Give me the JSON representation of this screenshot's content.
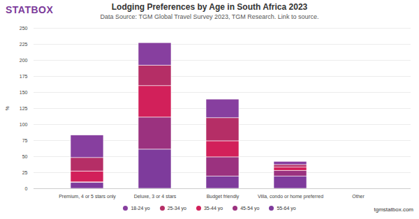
{
  "chart_data": {
    "type": "bar",
    "logo": "STATBOX",
    "title": "Lodging Preferences by Age in South Africa 2023",
    "subtitle": "Data Source: TGM Global Travel Survey 2023, TGM Research. Link to source.",
    "credit": "tgmstatbox.com",
    "y_label": "%",
    "categories": [
      "Premium, 4 or 5 stars only",
      "Deluxe, 3 or 4 stars",
      "Budget friendly",
      "Villa, condo or home preferred",
      "Other"
    ],
    "series": [
      {
        "name": "18-24 yo",
        "color": "#873f9f",
        "values": [
          35,
          35,
          29,
          5,
          0
        ]
      },
      {
        "name": "25-34 yo",
        "color": "#b52e66",
        "values": [
          21,
          32,
          36,
          4,
          0
        ]
      },
      {
        "name": "35-44 yo",
        "color": "#d2205a",
        "values": [
          17,
          49,
          25,
          5,
          0
        ]
      },
      {
        "name": "45-54 yo",
        "color": "#9b327f",
        "values": [
          1,
          50,
          30,
          9,
          0
        ]
      },
      {
        "name": "55-64 yo",
        "color": "#7e3b9c",
        "values": [
          9,
          61,
          19,
          19,
          0
        ]
      }
    ],
    "stacked": true,
    "ylim": [
      0,
      250
    ],
    "yticks": [
      0,
      25,
      50,
      75,
      100,
      125,
      150,
      175,
      200,
      225,
      250
    ],
    "grid": true,
    "legend": "bottom"
  }
}
